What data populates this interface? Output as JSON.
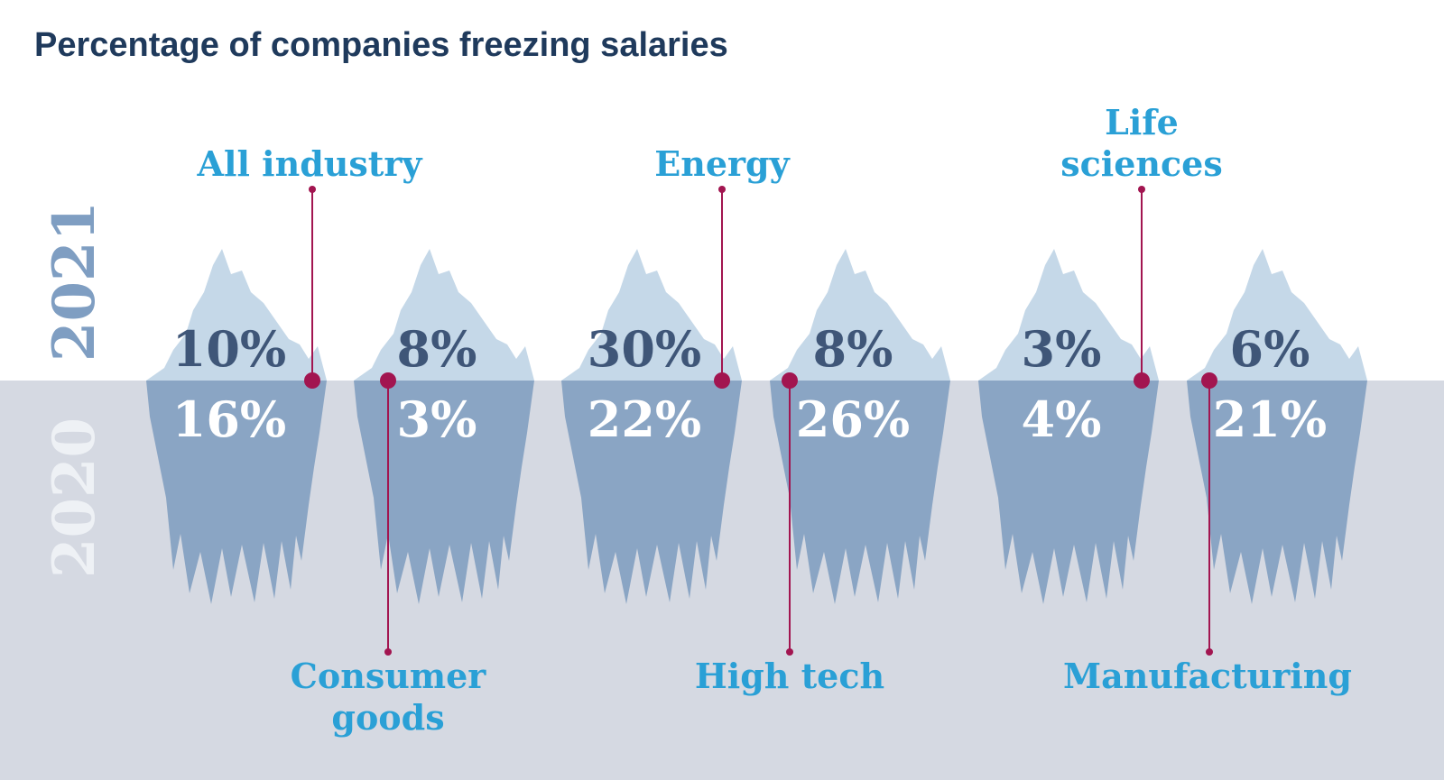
{
  "chart_data": {
    "type": "bar",
    "title": "Percentage of companies freezing salaries",
    "series": [
      {
        "name": "2021",
        "values": [
          10,
          8,
          30,
          8,
          3,
          6
        ],
        "labels": [
          "10%",
          "8%",
          "30%",
          "8%",
          "3%",
          "6%"
        ]
      },
      {
        "name": "2020",
        "values": [
          16,
          3,
          22,
          26,
          4,
          21
        ],
        "labels": [
          "16%",
          "3%",
          "22%",
          "26%",
          "4%",
          "21%"
        ]
      }
    ],
    "categories": [
      {
        "lines": [
          "All industry"
        ],
        "position": "top"
      },
      {
        "lines": [
          "Consumer",
          "goods"
        ],
        "position": "bottom"
      },
      {
        "lines": [
          "Energy"
        ],
        "position": "top"
      },
      {
        "lines": [
          "High tech"
        ],
        "position": "bottom"
      },
      {
        "lines": [
          "Life",
          "sciences"
        ],
        "position": "top"
      },
      {
        "lines": [
          "Manufacturing"
        ],
        "position": "bottom"
      }
    ],
    "unit": "%",
    "legend": "year labels at left: 2021 above waterline, 2020 below",
    "colors": {
      "title": "#1f3a5c",
      "category_label": "#2aa0d6",
      "leader_line": "#a21550",
      "ice_above": "#c5d8e8",
      "ice_below": "#8aa5c4",
      "water": "#d5d9e2",
      "value_2021": "#3f5678",
      "value_2020": "#ffffff",
      "year_2021": "#7f9ec2",
      "year_2020": "#eef1f5"
    }
  }
}
